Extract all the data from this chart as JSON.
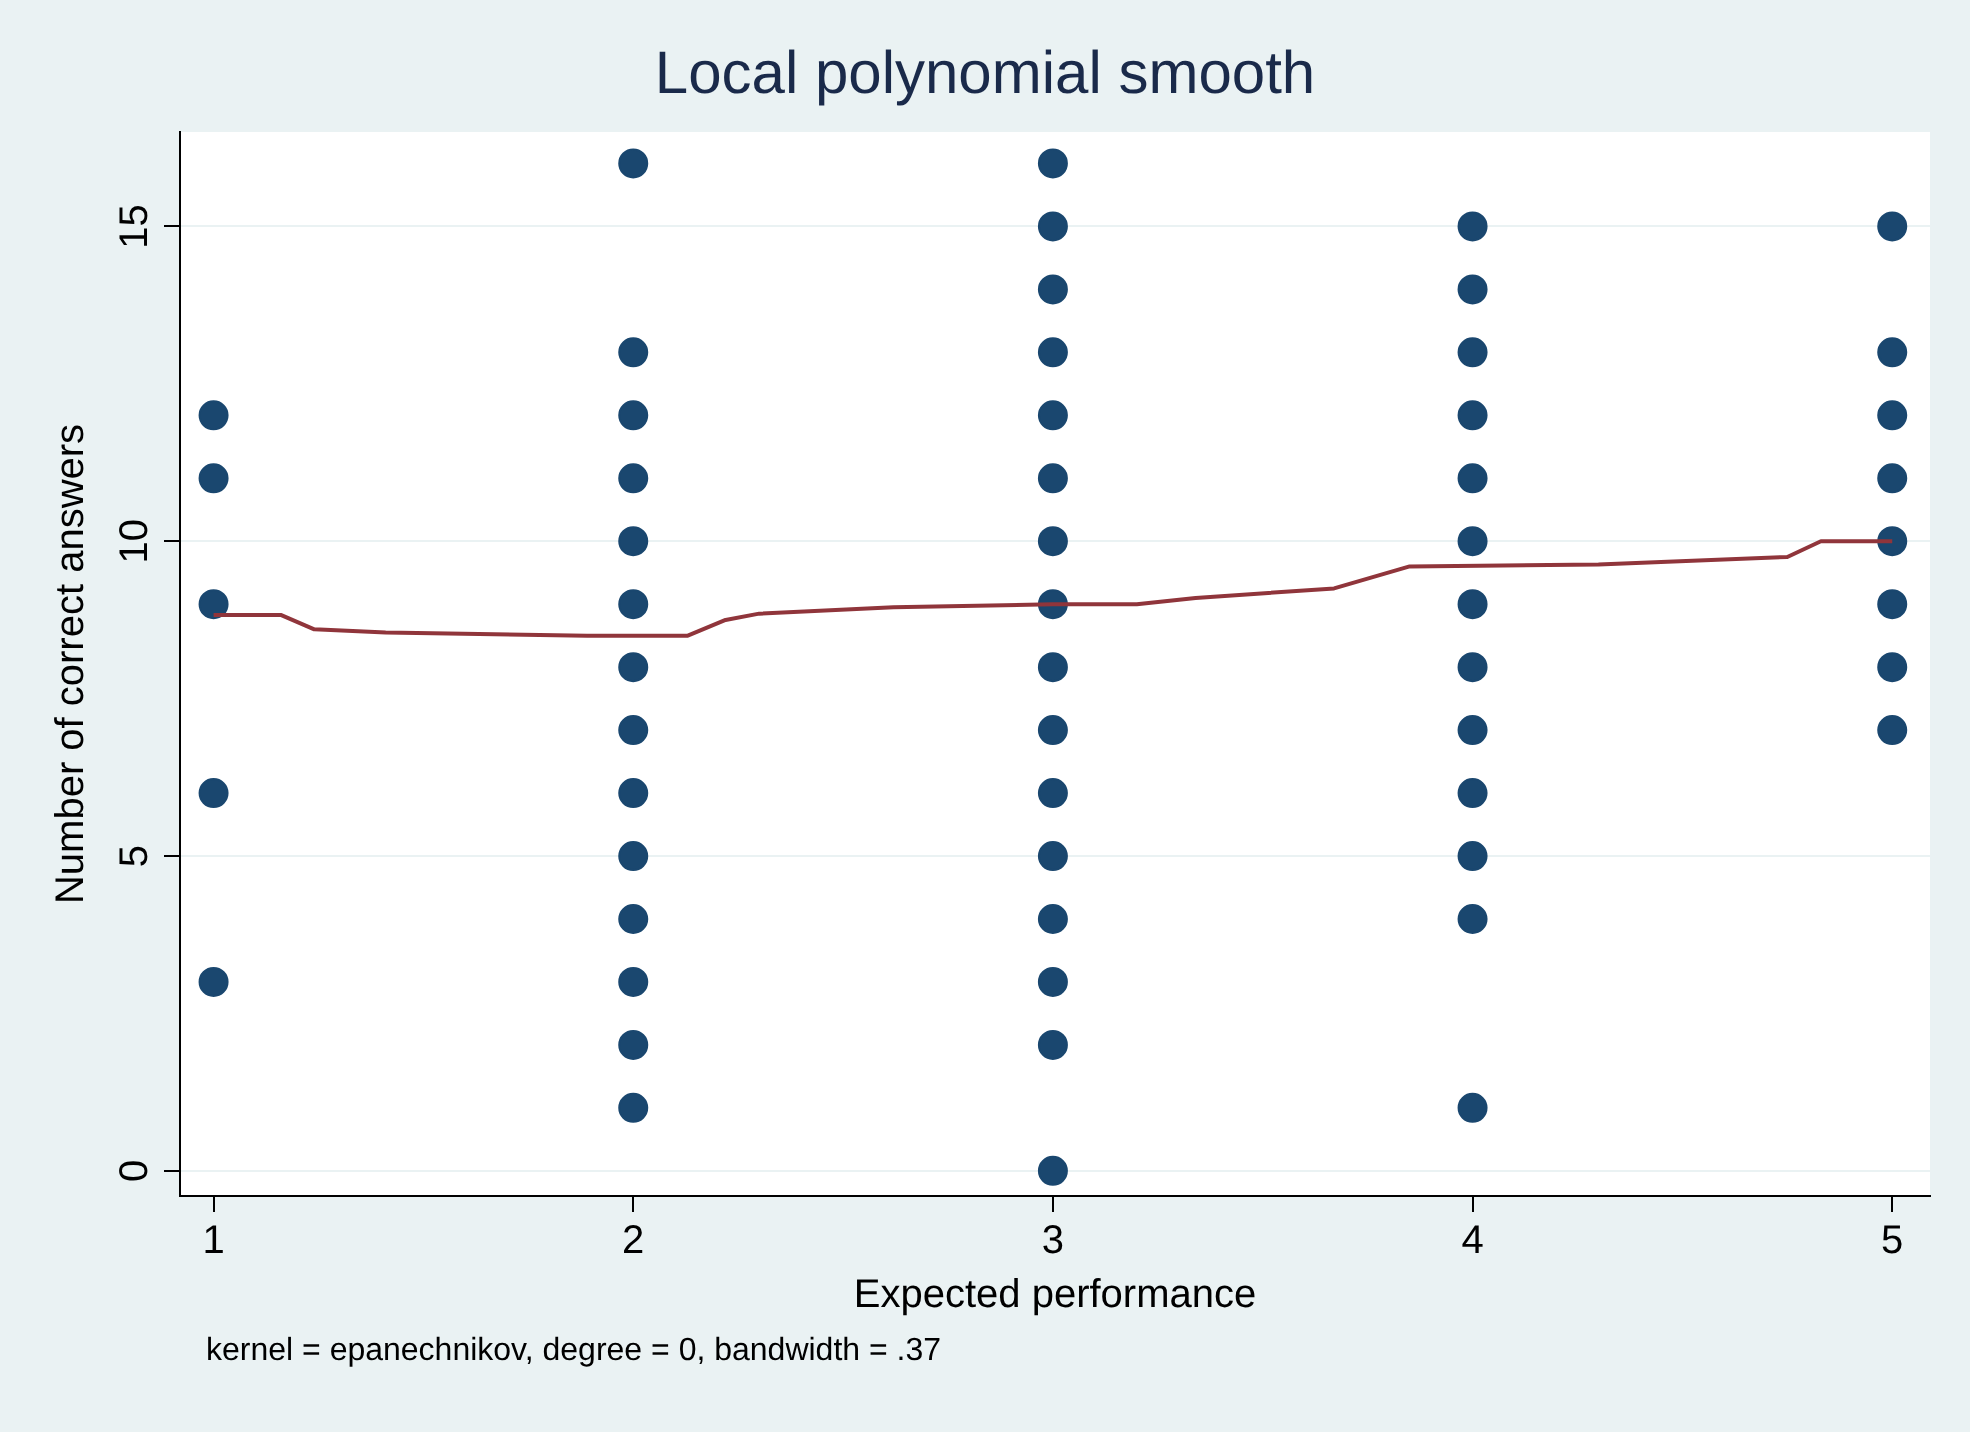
{
  "chart_data": {
    "type": "scatter",
    "title": "Local polynomial smooth",
    "xlabel": "Expected performance",
    "ylabel": "Number of correct answers",
    "annotations": [
      "kernel = epanechnikov, degree = 0, bandwidth = .37"
    ],
    "xlim": [
      0.92,
      5.09
    ],
    "xticks": [
      1,
      2,
      3,
      4,
      5
    ],
    "ylim": [
      -0.4,
      16.5
    ],
    "yticks": [
      0,
      5,
      10,
      15
    ],
    "grid": "y",
    "legend": false,
    "marker": "circle",
    "series": [
      {
        "type": "scatter",
        "color": "#1a476f",
        "x": [
          1,
          1,
          1,
          1,
          1,
          2,
          2,
          2,
          2,
          2,
          2,
          2,
          2,
          2,
          2,
          2,
          2,
          2,
          2,
          3,
          3,
          3,
          3,
          3,
          3,
          3,
          3,
          3,
          3,
          3,
          3,
          3,
          3,
          3,
          3,
          4,
          4,
          4,
          4,
          4,
          4,
          4,
          4,
          4,
          4,
          4,
          4,
          4,
          5,
          5,
          5,
          5,
          5,
          5,
          5,
          5
        ],
        "values": [
          3,
          6,
          9,
          11,
          12,
          1,
          2,
          3,
          4,
          5,
          6,
          7,
          8,
          9,
          10,
          11,
          12,
          13,
          16,
          0,
          2,
          3,
          4,
          5,
          6,
          7,
          8,
          9,
          10,
          11,
          12,
          13,
          14,
          15,
          16,
          1,
          4,
          5,
          6,
          7,
          8,
          9,
          10,
          11,
          12,
          13,
          14,
          15,
          7,
          8,
          9,
          10,
          11,
          12,
          13,
          15
        ]
      },
      {
        "type": "line",
        "color": "#90353b",
        "marker": "none",
        "x": [
          1,
          1.16,
          1.24,
          1.41,
          1.89,
          2.13,
          2.22,
          2.3,
          2.62,
          3,
          3.2,
          3.34,
          3.67,
          3.85,
          4.3,
          4.75,
          4.83,
          5
        ],
        "values": [
          8.83,
          8.83,
          8.6,
          8.55,
          8.5,
          8.5,
          8.75,
          8.85,
          8.95,
          9,
          9,
          9.1,
          9.25,
          9.6,
          9.63,
          9.75,
          10,
          10
        ]
      }
    ]
  }
}
